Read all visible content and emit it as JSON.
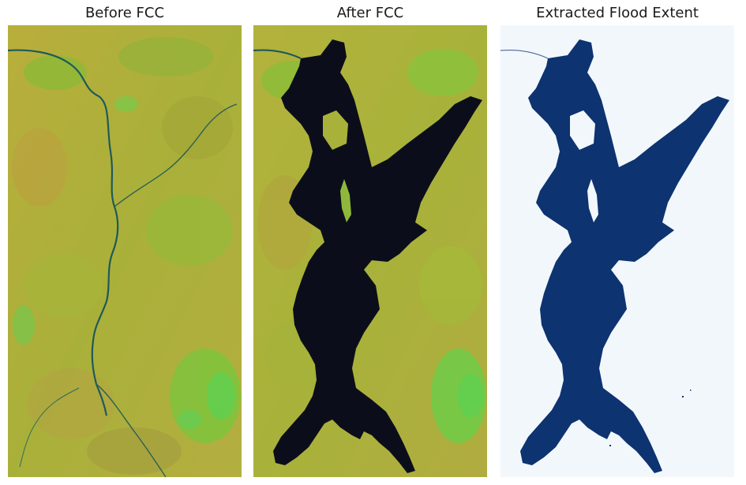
{
  "figure": {
    "panels": [
      {
        "title": "Before FCC"
      },
      {
        "title": "After FCC"
      },
      {
        "title": "Extracted Flood Extent"
      }
    ],
    "colors": {
      "land_base": "#b5b33c",
      "land_light": "#cfc248",
      "vegetation": "#8fc23a",
      "bright_vegetation": "#5fd050",
      "river": "#1f5a5a",
      "flood_water_fcc": "#0b0e1a",
      "flood_mask": "#0d3370",
      "mask_background": "#f2f7fc"
    }
  }
}
